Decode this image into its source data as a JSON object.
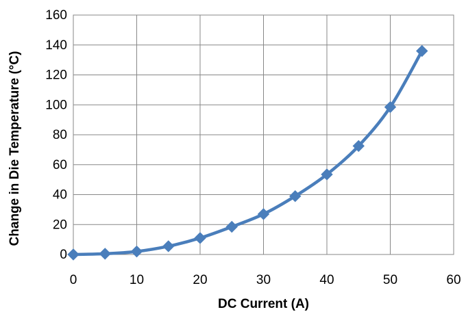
{
  "chart_data": {
    "type": "line",
    "xlabel": "DC Current (A)",
    "ylabel": "Change in Die Temperature (°C)",
    "xlim": [
      0,
      60
    ],
    "ylim": [
      0,
      160
    ],
    "xticks": [
      "0",
      "10",
      "20",
      "30",
      "40",
      "50",
      "60"
    ],
    "yticks": [
      "0",
      "20",
      "40",
      "60",
      "80",
      "100",
      "120",
      "140",
      "160"
    ],
    "grid": true,
    "marker": "diamond",
    "line_color": "#4a7ebb",
    "series": [
      {
        "x": [
          0,
          5,
          10,
          15,
          20,
          25,
          30,
          35,
          40,
          45,
          50,
          55
        ],
        "values": [
          0,
          0.5,
          2,
          5.5,
          11,
          18.5,
          27,
          39,
          53.5,
          72.5,
          98.5,
          136
        ]
      }
    ]
  }
}
